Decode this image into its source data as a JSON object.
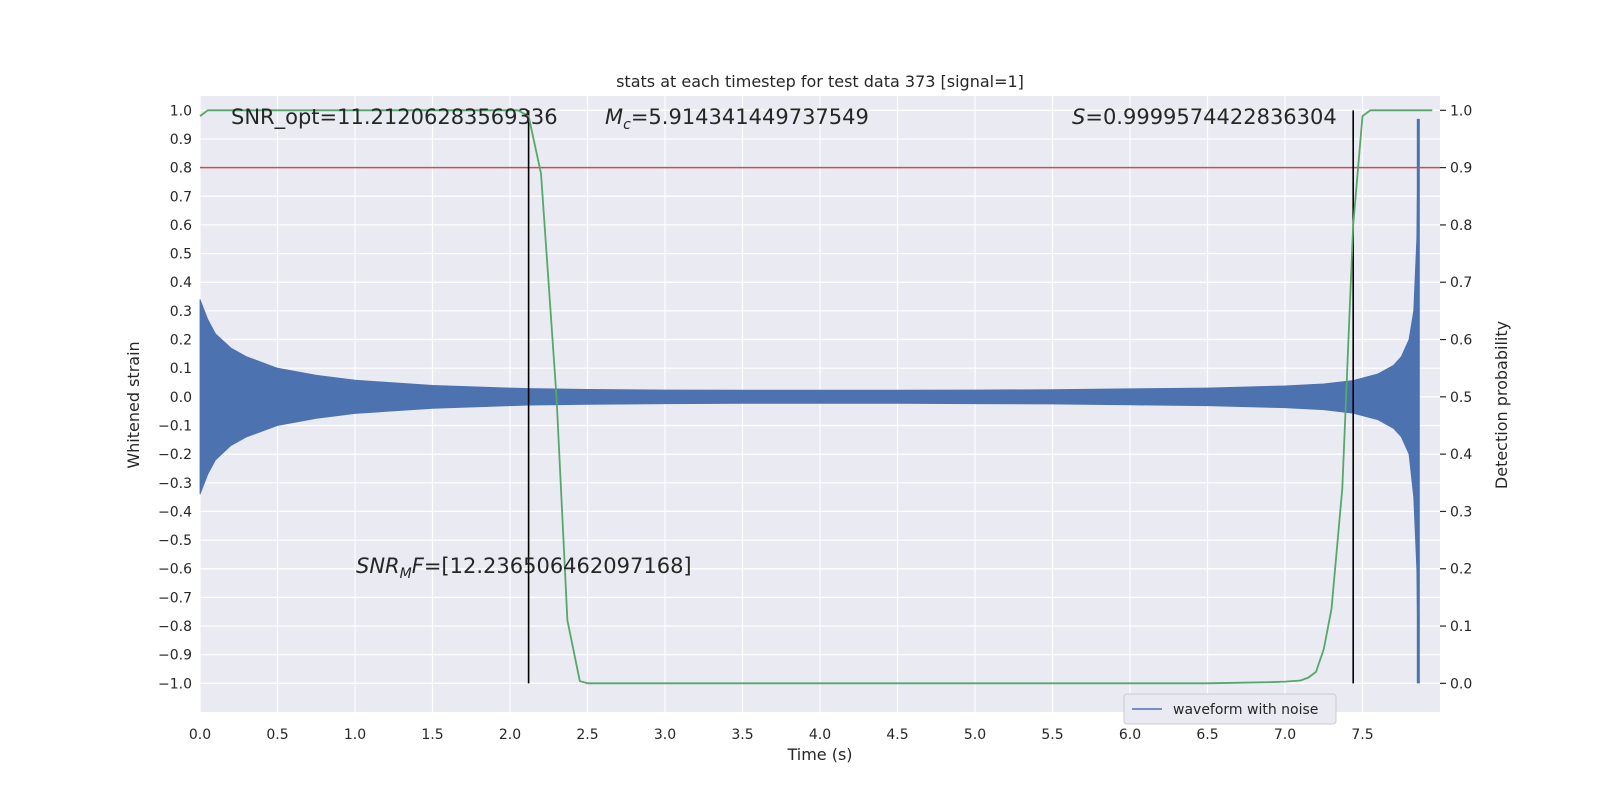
{
  "chart_data": {
    "type": "line",
    "title": "stats at each timestep for test data 373 [signal=1]",
    "xlabel": "Time (s)",
    "ylabel_left": "Whitened strain",
    "ylabel_right": "Detection probability",
    "xlim": [
      0.0,
      8.0
    ],
    "ylim_left": [
      -1.1,
      1.05
    ],
    "ylim_right": [
      -0.05,
      1.025
    ],
    "x_ticks": [
      "0.0",
      "0.5",
      "1.0",
      "1.5",
      "2.0",
      "2.5",
      "3.0",
      "3.5",
      "4.0",
      "4.5",
      "5.0",
      "5.5",
      "6.0",
      "6.5",
      "7.0",
      "7.5"
    ],
    "x_tick_values": [
      0.0,
      0.5,
      1.0,
      1.5,
      2.0,
      2.5,
      3.0,
      3.5,
      4.0,
      4.5,
      5.0,
      5.5,
      6.0,
      6.5,
      7.0,
      7.5
    ],
    "y_left_ticks": [
      "1.0",
      "0.9",
      "0.8",
      "0.7",
      "0.6",
      "0.5",
      "0.4",
      "0.3",
      "0.2",
      "0.1",
      "0.0",
      "−0.1",
      "−0.2",
      "−0.3",
      "−0.4",
      "−0.5",
      "−0.6",
      "−0.7",
      "−0.8",
      "−0.9",
      "−1.0"
    ],
    "y_left_tick_values": [
      1.0,
      0.9,
      0.8,
      0.7,
      0.6,
      0.5,
      0.4,
      0.3,
      0.2,
      0.1,
      0.0,
      -0.1,
      -0.2,
      -0.3,
      -0.4,
      -0.5,
      -0.6,
      -0.7,
      -0.8,
      -0.9,
      -1.0
    ],
    "y_right_ticks": [
      "1.0",
      "0.9",
      "0.8",
      "0.7",
      "0.6",
      "0.5",
      "0.4",
      "0.3",
      "0.2",
      "0.1",
      "0.0"
    ],
    "y_right_tick_values": [
      1.0,
      0.9,
      0.8,
      0.7,
      0.6,
      0.5,
      0.4,
      0.3,
      0.2,
      0.1,
      0.0
    ],
    "grid": true,
    "legend": {
      "placement": "lower right",
      "entries": [
        "waveform with noise"
      ]
    },
    "series": [
      {
        "name": "waveform with noise",
        "axis": "left",
        "color": "#4c72b0",
        "kind": "filled oscillation envelope",
        "x": [
          0.0,
          0.05,
          0.1,
          0.2,
          0.3,
          0.5,
          0.75,
          1.0,
          1.5,
          2.0,
          2.12,
          2.5,
          3.0,
          3.5,
          4.0,
          4.5,
          5.0,
          5.5,
          6.0,
          6.5,
          7.0,
          7.25,
          7.44,
          7.6,
          7.7,
          7.75,
          7.8,
          7.83,
          7.85,
          7.86
        ],
        "upper": [
          0.34,
          0.27,
          0.22,
          0.17,
          0.14,
          0.1,
          0.075,
          0.058,
          0.04,
          0.031,
          0.029,
          0.026,
          0.024,
          0.023,
          0.023,
          0.023,
          0.024,
          0.025,
          0.028,
          0.031,
          0.038,
          0.045,
          0.057,
          0.08,
          0.11,
          0.14,
          0.2,
          0.3,
          0.55,
          0.97
        ],
        "lower": [
          -0.34,
          -0.27,
          -0.22,
          -0.17,
          -0.14,
          -0.1,
          -0.075,
          -0.058,
          -0.04,
          -0.031,
          -0.029,
          -0.026,
          -0.024,
          -0.023,
          -0.023,
          -0.023,
          -0.024,
          -0.025,
          -0.028,
          -0.031,
          -0.038,
          -0.045,
          -0.057,
          -0.08,
          -0.11,
          -0.14,
          -0.2,
          -0.35,
          -0.6,
          -1.0
        ],
        "x_end": 7.86
      },
      {
        "name": "detection probability",
        "axis": "right",
        "color": "#55a868",
        "x": [
          0.0,
          0.05,
          0.5,
          1.0,
          1.5,
          1.9,
          2.05,
          2.12,
          2.2,
          2.3,
          2.37,
          2.45,
          2.5,
          3.0,
          4.0,
          5.0,
          6.0,
          6.5,
          6.9,
          7.0,
          7.1,
          7.15,
          7.2,
          7.25,
          7.3,
          7.37,
          7.44,
          7.5,
          7.55,
          7.6,
          7.7,
          7.8,
          7.95
        ],
        "y": [
          0.99,
          1.0,
          1.0,
          1.0,
          1.0,
          1.0,
          1.0,
          0.99,
          0.89,
          0.5,
          0.11,
          0.004,
          0.0,
          0.0,
          0.0,
          0.0,
          0.0,
          0.0,
          0.002,
          0.003,
          0.005,
          0.01,
          0.02,
          0.06,
          0.13,
          0.34,
          0.8,
          0.99,
          1.0,
          1.0,
          1.0,
          1.0,
          1.0
        ]
      },
      {
        "name": "threshold",
        "axis": "right",
        "color": "#c44e52",
        "kind": "horizontal line",
        "y": 0.9
      }
    ],
    "vertical_lines": [
      {
        "x": 2.12,
        "y_from": 0.0,
        "y_to": 1.0,
        "axis": "right",
        "color": "#000000"
      },
      {
        "x": 7.44,
        "y_from": 0.0,
        "y_to": 1.0,
        "axis": "right",
        "color": "#000000"
      }
    ],
    "annotations": [
      {
        "text": "SNR_opt=11.21206283569336"
      },
      {
        "text_main": "M",
        "text_sub": "c",
        "text_rest": "=5.914341449737549"
      },
      {
        "text_main": "S",
        "text_rest": "=0.9999574422836304"
      },
      {
        "text_main": "SNR",
        "text_sub": "M",
        "text_italic_after": "F",
        "text_rest": "=[12.236506462097168]"
      }
    ]
  }
}
